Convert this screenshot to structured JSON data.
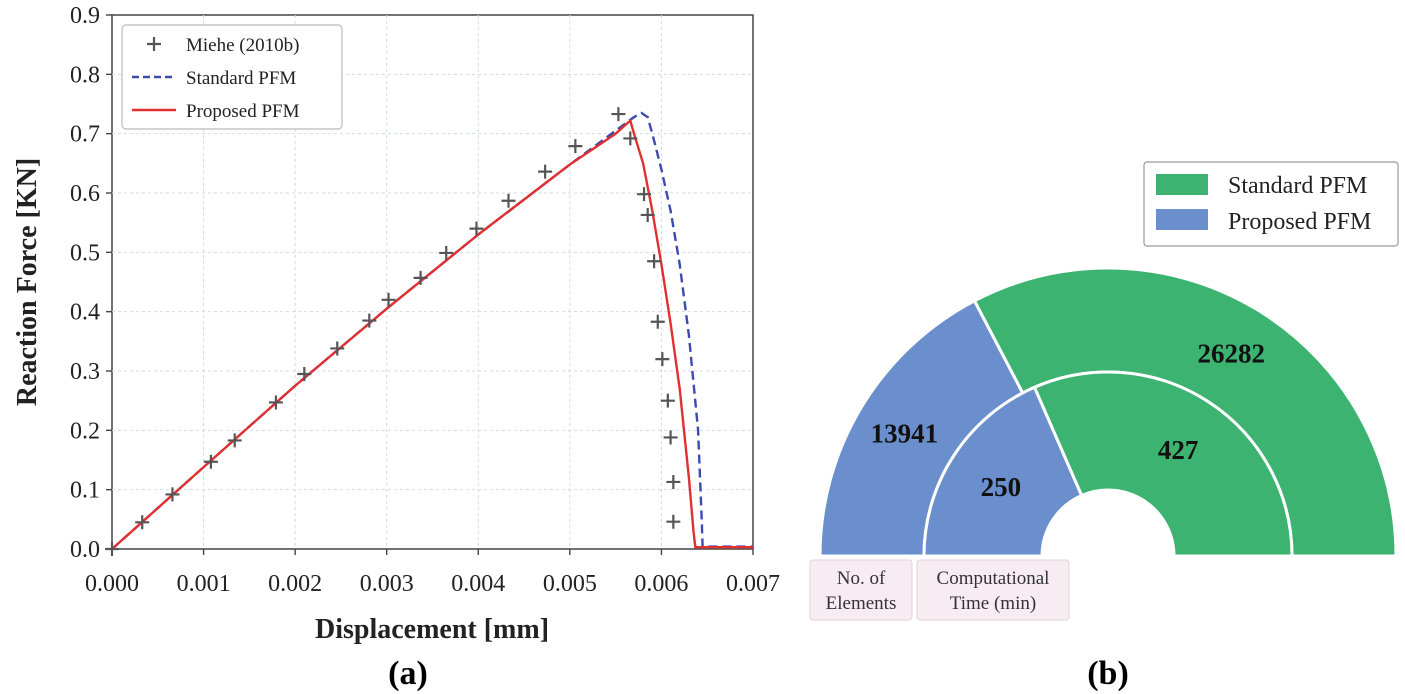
{
  "panel_a_label": "(a)",
  "panel_b_label": "(b)",
  "colors": {
    "miehe": "#555555",
    "standard_line": "#3b4bb0",
    "proposed_line": "#e03030",
    "standard_fill": "#3cb371",
    "proposed_fill": "#6a8fcc",
    "category_box": "#f6ecf1"
  },
  "chart_data": [
    {
      "type": "line",
      "title": "",
      "xlabel": "Displacement [mm]",
      "ylabel": "Reaction Force [KN]",
      "xlim": [
        0.0,
        0.007
      ],
      "ylim": [
        0.0,
        0.9
      ],
      "xticks": [
        "0.000",
        "0.001",
        "0.002",
        "0.003",
        "0.004",
        "0.005",
        "0.006",
        "0.007"
      ],
      "yticks": [
        "0.0",
        "0.1",
        "0.2",
        "0.3",
        "0.4",
        "0.5",
        "0.6",
        "0.7",
        "0.8",
        "0.9"
      ],
      "grid": true,
      "legend_position": "top-left",
      "series": [
        {
          "name": "Miehe (2010b)",
          "style": "markers-plus",
          "x": [
            0.0,
            0.00033,
            0.00066,
            0.00108,
            0.00134,
            0.00179,
            0.0021,
            0.00246,
            0.00281,
            0.00302,
            0.00337,
            0.00365,
            0.00398,
            0.00433,
            0.00473,
            0.00506,
            0.00553,
            0.00566,
            0.00581,
            0.00585,
            0.00592,
            0.00596,
            0.00601,
            0.00607,
            0.0061,
            0.00613,
            0.00613
          ],
          "y": [
            0.0,
            0.045,
            0.092,
            0.147,
            0.183,
            0.247,
            0.295,
            0.338,
            0.385,
            0.42,
            0.457,
            0.499,
            0.54,
            0.587,
            0.636,
            0.679,
            0.733,
            0.692,
            0.598,
            0.563,
            0.485,
            0.383,
            0.32,
            0.25,
            0.188,
            0.113,
            0.046
          ]
        },
        {
          "name": "Standard PFM",
          "style": "dashed",
          "x": [
            0.0,
            0.001,
            0.002,
            0.003,
            0.004,
            0.005,
            0.0055,
            0.0057,
            0.00578,
            0.00585,
            0.0059,
            0.006,
            0.0061,
            0.0062,
            0.0063,
            0.0064,
            0.00644,
            0.00645,
            0.007
          ],
          "y": [
            0.0,
            0.138,
            0.275,
            0.405,
            0.53,
            0.648,
            0.705,
            0.728,
            0.735,
            0.728,
            0.7,
            0.64,
            0.57,
            0.48,
            0.36,
            0.2,
            0.05,
            0.004,
            0.004
          ]
        },
        {
          "name": "Proposed PFM",
          "style": "solid",
          "x": [
            0.0,
            0.001,
            0.002,
            0.003,
            0.004,
            0.005,
            0.0055,
            0.00566,
            0.0057,
            0.0058,
            0.0059,
            0.006,
            0.0061,
            0.0062,
            0.0063,
            0.00635,
            0.00637,
            0.007
          ],
          "y": [
            0.0,
            0.138,
            0.275,
            0.405,
            0.53,
            0.648,
            0.7,
            0.722,
            0.7,
            0.65,
            0.57,
            0.48,
            0.38,
            0.27,
            0.12,
            0.03,
            0.003,
            0.003
          ]
        }
      ]
    },
    {
      "type": "pie",
      "subtype": "nested-half-donut",
      "legend_position": "top-right",
      "legend": [
        "Standard PFM",
        "Proposed PFM"
      ],
      "categories": [
        "No. of\nElements",
        "Computational\nTime (min)"
      ],
      "category_lines": [
        [
          "No. of",
          "Elements"
        ],
        [
          "Computational",
          "Time (min)"
        ]
      ],
      "series": [
        {
          "name": "Standard PFM",
          "values": [
            26282,
            427
          ]
        },
        {
          "name": "Proposed PFM",
          "values": [
            13941,
            250
          ]
        }
      ],
      "value_labels": {
        "outer": {
          "proposed": "13941",
          "standard": "26282"
        },
        "inner": {
          "proposed": "250",
          "standard": "427"
        }
      }
    }
  ]
}
